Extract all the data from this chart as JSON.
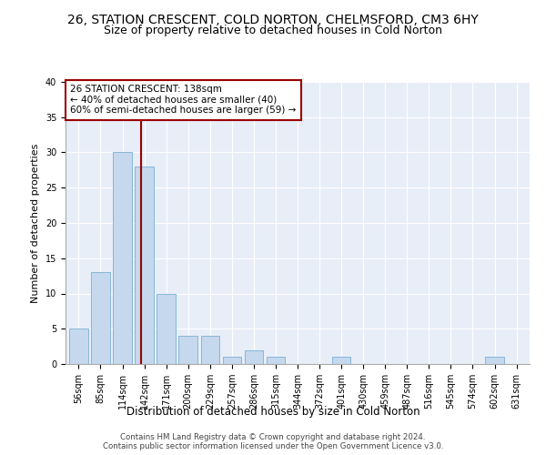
{
  "title1": "26, STATION CRESCENT, COLD NORTON, CHELMSFORD, CM3 6HY",
  "title2": "Size of property relative to detached houses in Cold Norton",
  "xlabel": "Distribution of detached houses by size in Cold Norton",
  "ylabel": "Number of detached properties",
  "categories": [
    "56sqm",
    "85sqm",
    "114sqm",
    "142sqm",
    "171sqm",
    "200sqm",
    "229sqm",
    "257sqm",
    "286sqm",
    "315sqm",
    "344sqm",
    "372sqm",
    "401sqm",
    "430sqm",
    "459sqm",
    "487sqm",
    "516sqm",
    "545sqm",
    "574sqm",
    "602sqm",
    "631sqm"
  ],
  "values": [
    5,
    13,
    30,
    28,
    10,
    4,
    4,
    1,
    2,
    1,
    0,
    0,
    1,
    0,
    0,
    0,
    0,
    0,
    0,
    1,
    0
  ],
  "bar_color": "#c5d8ed",
  "bar_edge_color": "#7bafd4",
  "vline_x_index": 2.85,
  "vline_color": "#9b0000",
  "annotation_box_text": "26 STATION CRESCENT: 138sqm\n← 40% of detached houses are smaller (40)\n60% of semi-detached houses are larger (59) →",
  "box_edge_color": "#9b0000",
  "ylim": [
    0,
    40
  ],
  "yticks": [
    0,
    5,
    10,
    15,
    20,
    25,
    30,
    35,
    40
  ],
  "bg_color": "#e8eef8",
  "footer1": "Contains HM Land Registry data © Crown copyright and database right 2024.",
  "footer2": "Contains public sector information licensed under the Open Government Licence v3.0.",
  "title_fontsize": 10,
  "subtitle_fontsize": 9,
  "tick_fontsize": 7,
  "ylabel_fontsize": 8,
  "xlabel_fontsize": 8.5
}
